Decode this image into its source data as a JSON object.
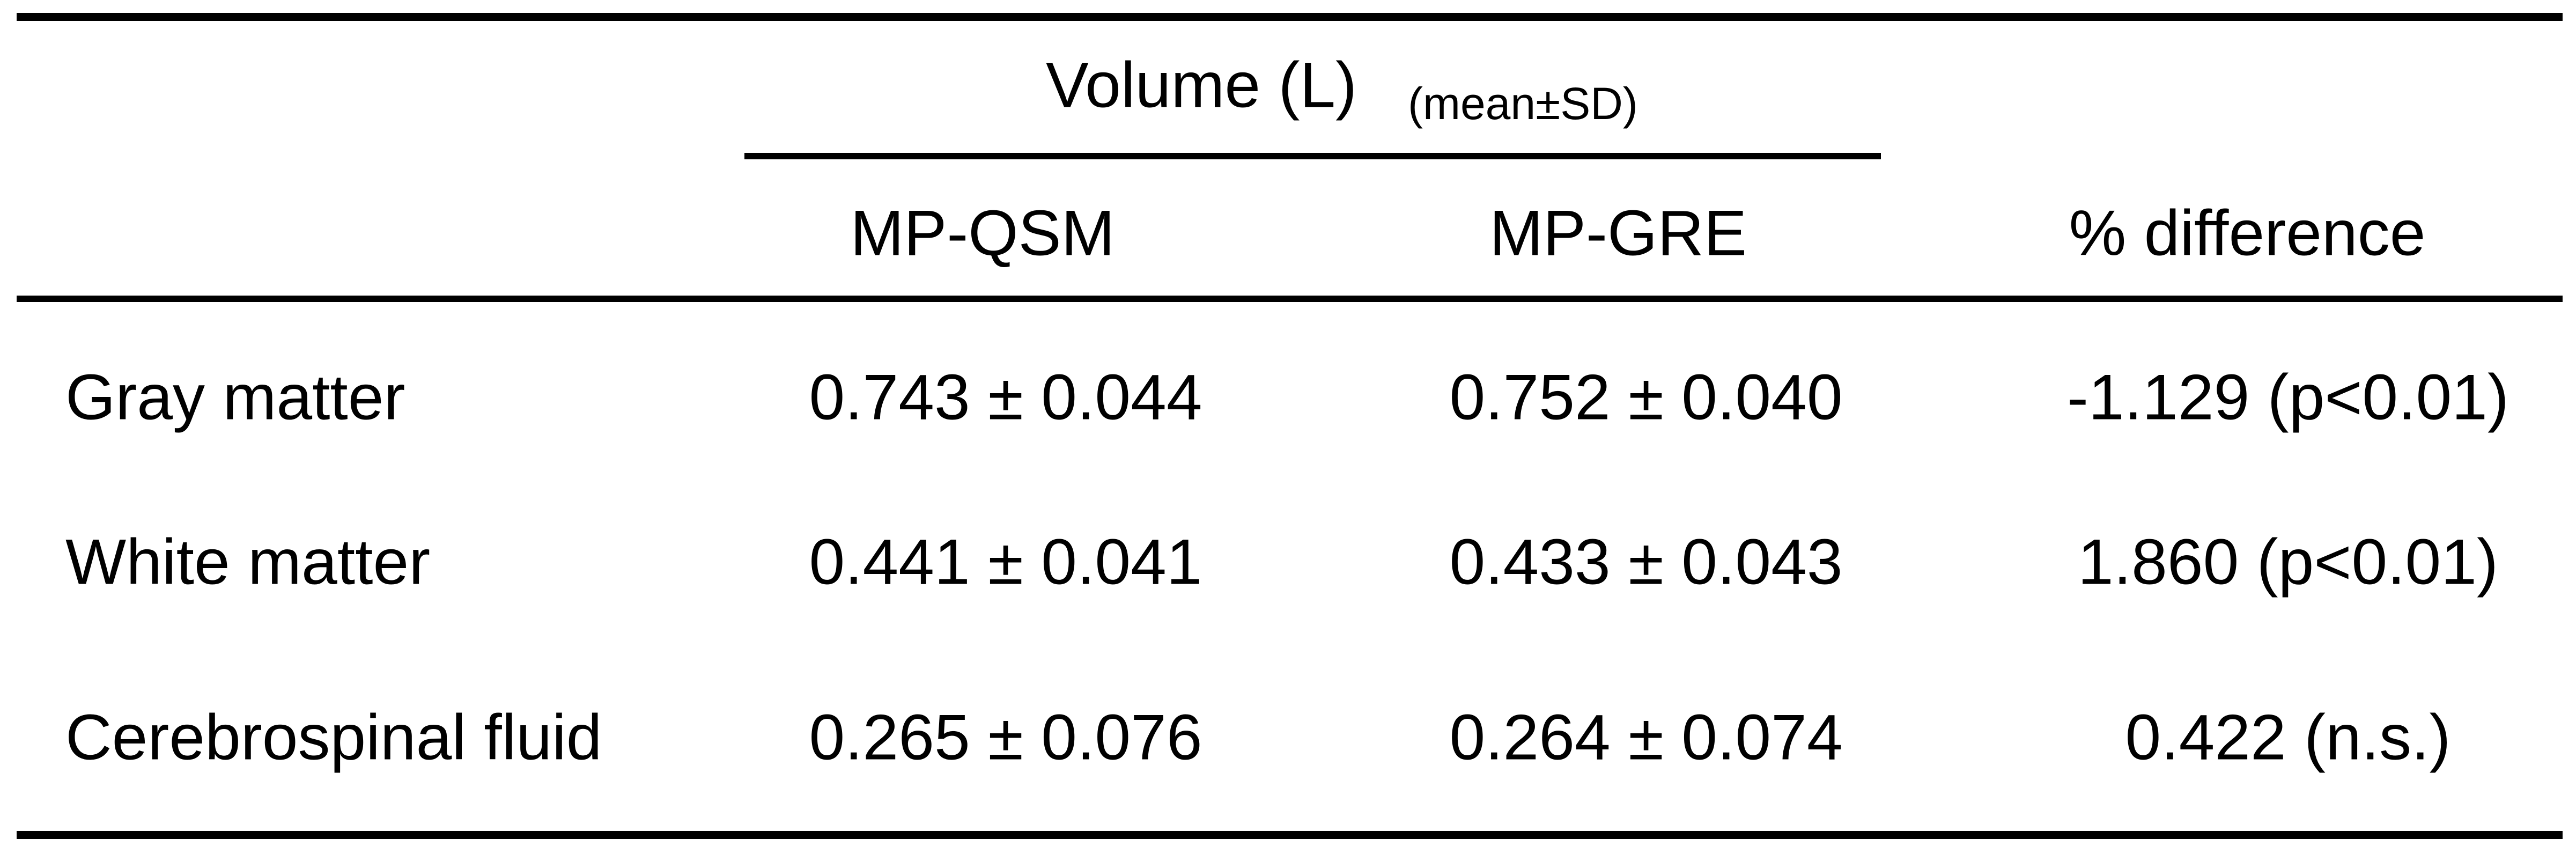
{
  "table": {
    "group_header": "Volume (L)",
    "group_note": "(mean±SD)",
    "columns": [
      "MP-QSM",
      "MP-GRE",
      "% difference"
    ],
    "rows": [
      [
        "Gray matter",
        "0.743 ± 0.044",
        "0.752 ± 0.040",
        "-1.129 (p<0.01)"
      ],
      [
        "White matter",
        "0.441 ± 0.041",
        "0.433 ± 0.043",
        "1.860 (p<0.01)"
      ],
      [
        "Cerebrospinal fluid",
        "0.265 ± 0.076",
        "0.264 ± 0.074",
        "0.422 (n.s.)"
      ]
    ]
  }
}
